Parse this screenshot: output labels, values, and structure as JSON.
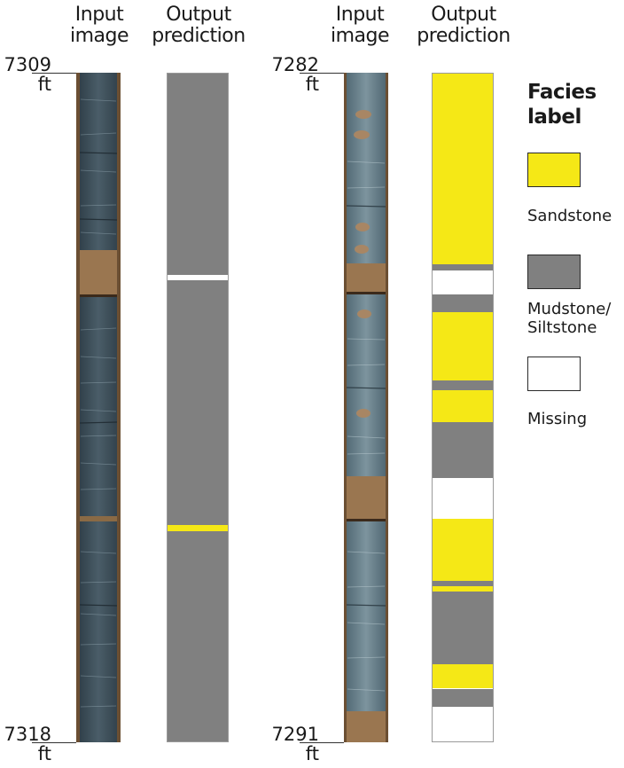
{
  "columns": [
    {
      "header_line1": "Input",
      "header_line2": "image"
    },
    {
      "header_line1": "Output",
      "header_line2": "prediction"
    },
    {
      "header_line1": "Input",
      "header_line2": "image"
    },
    {
      "header_line1": "Output",
      "header_line2": "prediction"
    }
  ],
  "depths": {
    "core1_top": {
      "value": "7309",
      "unit": "ft"
    },
    "core1_bottom": {
      "value": "7318",
      "unit": "ft"
    },
    "core2_top": {
      "value": "7282",
      "unit": "ft"
    },
    "core2_bottom": {
      "value": "7291",
      "unit": "ft"
    }
  },
  "legend": {
    "title_line1": "Facies",
    "title_line2": "label",
    "items": [
      {
        "label_line1": "Sandstone",
        "label_line2": "",
        "color": "#f5e816"
      },
      {
        "label_line1": "Mudstone/",
        "label_line2": "Siltstone",
        "color": "#808080"
      },
      {
        "label_line1": "Missing",
        "label_line2": "",
        "color": "#ffffff"
      }
    ]
  },
  "colors": {
    "sandstone": "#f5e816",
    "mudstone": "#808080",
    "missing": "#ffffff",
    "core_rock": "#3a4a54",
    "core_box": "#8a6a45"
  },
  "predictions": {
    "core1": {
      "depth_range_ft": [
        7309,
        7318
      ],
      "intervals": [
        {
          "from": 0.0,
          "to": 0.301,
          "facies": "mudstone"
        },
        {
          "from": 0.301,
          "to": 0.31,
          "facies": "missing"
        },
        {
          "from": 0.31,
          "to": 0.676,
          "facies": "mudstone"
        },
        {
          "from": 0.676,
          "to": 0.685,
          "facies": "sandstone"
        },
        {
          "from": 0.685,
          "to": 1.0,
          "facies": "mudstone"
        }
      ]
    },
    "core2": {
      "depth_range_ft": [
        7282,
        7291
      ],
      "intervals": [
        {
          "from": 0.0,
          "to": 0.286,
          "facies": "sandstone"
        },
        {
          "from": 0.286,
          "to": 0.295,
          "facies": "mudstone"
        },
        {
          "from": 0.295,
          "to": 0.331,
          "facies": "missing"
        },
        {
          "from": 0.331,
          "to": 0.357,
          "facies": "mudstone"
        },
        {
          "from": 0.357,
          "to": 0.459,
          "facies": "sandstone"
        },
        {
          "from": 0.459,
          "to": 0.474,
          "facies": "mudstone"
        },
        {
          "from": 0.474,
          "to": 0.522,
          "facies": "sandstone"
        },
        {
          "from": 0.522,
          "to": 0.605,
          "facies": "mudstone"
        },
        {
          "from": 0.605,
          "to": 0.667,
          "facies": "missing"
        },
        {
          "from": 0.667,
          "to": 0.759,
          "facies": "sandstone"
        },
        {
          "from": 0.759,
          "to": 0.768,
          "facies": "mudstone"
        },
        {
          "from": 0.768,
          "to": 0.776,
          "facies": "sandstone"
        },
        {
          "from": 0.776,
          "to": 0.885,
          "facies": "mudstone"
        },
        {
          "from": 0.885,
          "to": 0.921,
          "facies": "sandstone"
        },
        {
          "from": 0.921,
          "to": 0.948,
          "facies": "mudstone"
        },
        {
          "from": 0.948,
          "to": 1.0,
          "facies": "missing"
        }
      ]
    }
  }
}
